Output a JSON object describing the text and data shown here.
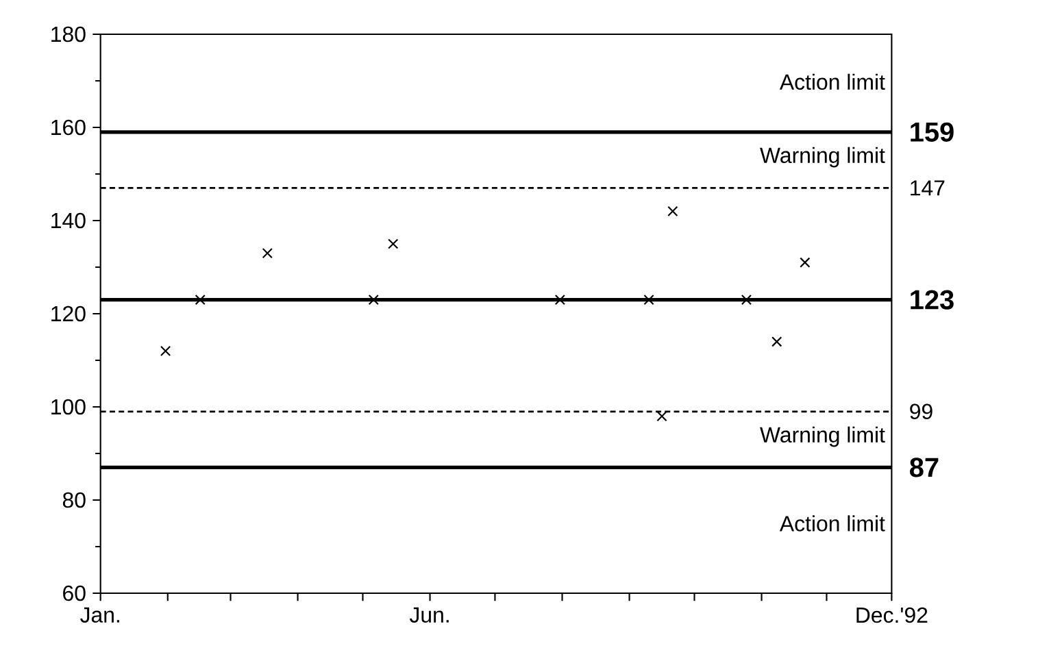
{
  "chart_data": {
    "type": "scatter",
    "x": [
      "1992-01-31",
      "1992-02-16",
      "1992-03-18",
      "1992-05-06",
      "1992-05-15",
      "1992-07-31",
      "1992-09-10",
      "1992-09-16",
      "1992-09-21",
      "1992-10-25",
      "1992-11-08",
      "1992-11-21"
    ],
    "values": [
      112,
      123,
      133,
      123,
      135,
      123,
      123,
      98,
      142,
      123,
      114,
      131
    ],
    "color": "#000000",
    "marker": "cross",
    "xlim": [
      "1992-01-01",
      "1992-12-31"
    ],
    "xticks": [
      {
        "value": "1992-01-01",
        "label": "Jan."
      },
      {
        "value": "1992-02-01",
        "label": null
      },
      {
        "value": "1992-03-01",
        "label": null
      },
      {
        "value": "1992-04-01",
        "label": null
      },
      {
        "value": "1992-05-01",
        "label": null
      },
      {
        "value": "1992-06-01",
        "label": "Jun."
      },
      {
        "value": "1992-07-01",
        "label": null
      },
      {
        "value": "1992-08-01",
        "label": null
      },
      {
        "value": "1992-09-01",
        "label": null
      },
      {
        "value": "1992-10-01",
        "label": null
      },
      {
        "value": "1992-11-01",
        "label": null
      },
      {
        "value": "1992-12-01",
        "label": null
      },
      {
        "value": "1992-12-31",
        "label": "Dec.'92"
      }
    ],
    "ylim": [
      60,
      180
    ],
    "yticks": [
      60,
      80,
      100,
      120,
      140,
      160,
      180
    ],
    "ref_lines": [
      {
        "axis": "y",
        "value": 159,
        "label": "159",
        "line_style": "solid",
        "color": "#000000"
      },
      {
        "axis": "y",
        "value": 147,
        "label": "147",
        "line_style": "dotted",
        "color": "#000000"
      },
      {
        "axis": "y",
        "value": 123,
        "label": "123",
        "line_style": "solid",
        "color": "#000000"
      },
      {
        "axis": "y",
        "value": 99,
        "label": "99",
        "line_style": "dotted",
        "color": "#000000"
      },
      {
        "axis": "y",
        "value": 87,
        "label": "87",
        "line_style": "solid",
        "color": "#000000"
      }
    ],
    "annotations": [
      "Action limit",
      "Warning limit",
      "Warning limit",
      "Action limit"
    ],
    "grid": false
  }
}
